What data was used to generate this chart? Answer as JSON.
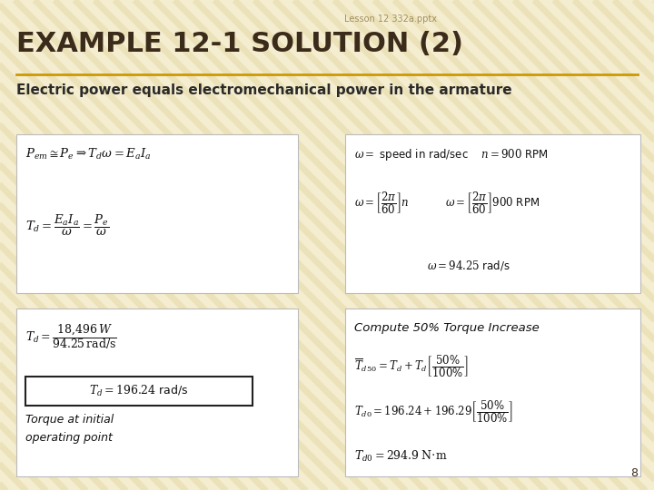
{
  "bg_color": "#F5EDD0",
  "stripe_color": "#DDD090",
  "title_text": "EXAMPLE 12-1 SOLUTION (2)",
  "title_color": "#3B2B1A",
  "title_underline_color": "#CC9900",
  "header_text": "Lesson 12 332a.pptx",
  "header_color": "#A09060",
  "subtitle_text": "Electric power equals electromechanical power in the armature",
  "subtitle_color": "#2A2A2A",
  "page_number": "8",
  "box_bg": "#FFFFFF",
  "box_edge": "#BBBBBB",
  "figsize": [
    7.2,
    5.4
  ],
  "dpi": 100
}
